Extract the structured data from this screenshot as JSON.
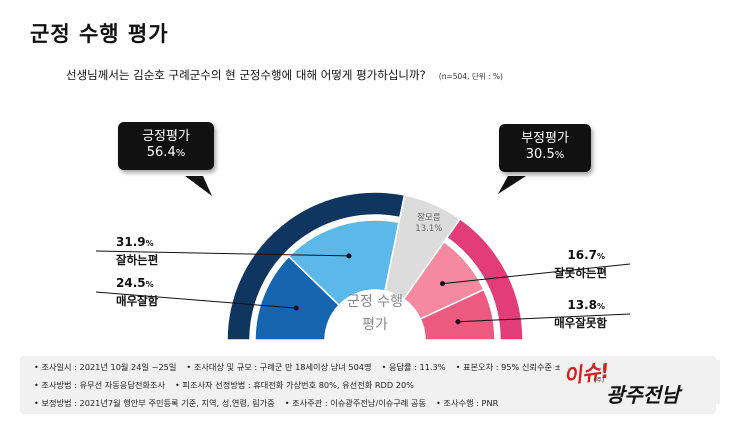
{
  "title": "군정 수행 평가",
  "question": "선생님께서는 김순호 구례군수의 현 군정수행에 대해 어떻게 평가하십니까?",
  "meta": "(n=504, 단위 : %)",
  "center_label": [
    "군정 수행",
    "평가"
  ],
  "positive_bubble": {
    "label": "긍정평가",
    "value": "56.4",
    "unit": "%"
  },
  "negative_bubble": {
    "label": "부정평가",
    "value": "30.5",
    "unit": "%"
  },
  "colors": {
    "positive_outer": "#10355f",
    "negative_outer": "#e23d76",
    "dontknow": "#dcdcdc",
    "very_good": "#1565b0",
    "somewhat_good": "#5cb8e8",
    "somewhat_bad": "#f5899f",
    "very_bad": "#ec5b7f"
  },
  "chart_data": {
    "type": "pie",
    "style": "semicircle-donut",
    "title": "군정 수행 평가",
    "outer_ring": [
      {
        "label": "긍정평가",
        "value": 56.4
      },
      {
        "label": "잘모름",
        "value": 13.1
      },
      {
        "label": "부정평가",
        "value": 30.5
      }
    ],
    "inner_ring": [
      {
        "label": "매우잘함",
        "value": 24.5
      },
      {
        "label": "잘하는편",
        "value": 31.9
      },
      {
        "label": "잘모름",
        "value": 13.1
      },
      {
        "label": "잘못하는편",
        "value": 16.7
      },
      {
        "label": "매우잘못함",
        "value": 13.8
      }
    ],
    "unit": "%"
  },
  "footer": {
    "row1": [
      "• 조사일시 : 2021년 10월 24일 ~25일",
      "• 조사대상 및 규모 : 구례군 만 18세이상  남녀  504명",
      "• 응답률 :  11.3%",
      "• 표본오차 : 95% 신뢰수준 ±4.4%"
    ],
    "row2": [
      "• 조사방법 : 유무선 자동응답전화조사",
      "• 피조사자 선정방법 : 휴대전화 가상번호 80%, 유선전화 RDD  20%"
    ],
    "row3": [
      "• 보정방법 : 2021년7월  행안부 주민등록 기준,  지역,  성,연령,  림가중",
      "• 조사주관 : 이슈광주전남/이슈구례 공동",
      "• 조사수행 : PNR"
    ]
  },
  "logo": {
    "top": "이슈!",
    "bottom": "광주전남",
    "small": "(주)"
  }
}
